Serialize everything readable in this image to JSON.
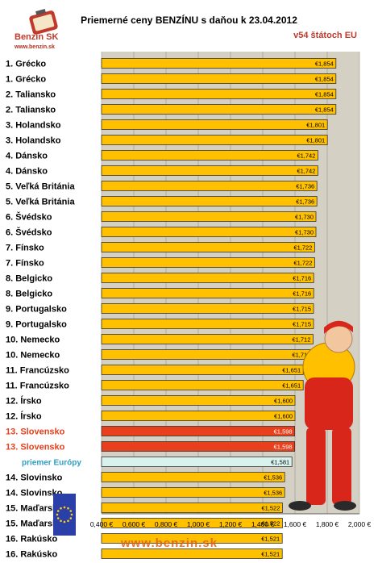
{
  "header": {
    "title": "Priemerné ceny BENZÍNU s daňou k 23.04.2012",
    "subtitle": "v54 štátoch EU",
    "logo_text": "Benzin SK",
    "logo_url": "www.benzin.sk",
    "watermark": "www.benzin.sk"
  },
  "colors": {
    "bar_default": "#ffc000",
    "bar_highlight": "#e8401c",
    "bar_average": "#d8f3ee",
    "label_highlight": "#e8401c",
    "label_average": "#2e9ec4",
    "plot_background": "#d4d0c4"
  },
  "chart_data": {
    "type": "bar",
    "orientation": "horizontal",
    "title": "Priemerné ceny BENZÍNU s daňou k 23.04.2012",
    "subtitle": "v54 štátoch EU",
    "xlim": [
      0.4,
      2.0
    ],
    "x_ticks": [
      "0,400 €",
      "0,600 €",
      "0,800 €",
      "1,000 €",
      "1,200 €",
      "1,400 €",
      "1,600 €",
      "1,800 €",
      "2,000 €"
    ],
    "x_tick_values": [
      0.4,
      0.6,
      0.8,
      1.0,
      1.2,
      1.4,
      1.6,
      1.8,
      2.0
    ],
    "grid": true,
    "categories": [
      "1. Grécko",
      "1. Grécko",
      "2. Taliansko",
      "2. Taliansko",
      "3. Holandsko",
      "3. Holandsko",
      "4. Dánsko",
      "4. Dánsko",
      "5. Veľká Británia",
      "5. Veľká Británia",
      "6. Švédsko",
      "6. Švédsko",
      "7. Fínsko",
      "7. Fínsko",
      "8. Belgicko",
      "8. Belgicko",
      "9. Portugalsko",
      "9. Portugalsko",
      "10. Nemecko",
      "10. Nemecko",
      "11. Francúzsko",
      "11. Francúzsko",
      "12. Írsko",
      "12. Írsko",
      "13. Slovensko",
      "13. Slovensko",
      "priemer Európy",
      "14. Slovinsko",
      "14. Slovinsko",
      "15. Maďarsko",
      "15. Maďarsko",
      "16. Rakúsko",
      "16. Rakúsko"
    ],
    "values": [
      1.854,
      1.854,
      1.854,
      1.854,
      1.801,
      1.801,
      1.742,
      1.742,
      1.736,
      1.736,
      1.73,
      1.73,
      1.722,
      1.722,
      1.716,
      1.716,
      1.715,
      1.715,
      1.712,
      1.712,
      1.651,
      1.651,
      1.6,
      1.6,
      1.598,
      1.598,
      1.581,
      1.536,
      1.536,
      1.522,
      1.522,
      1.521,
      1.521
    ],
    "value_labels": [
      "€1,854",
      "€1,854",
      "€1,854",
      "€1,854",
      "€1,801",
      "€1,801",
      "€1,742",
      "€1,742",
      "€1,736",
      "€1,736",
      "€1,730",
      "€1,730",
      "€1,722",
      "€1,722",
      "€1,716",
      "€1,716",
      "€1,715",
      "€1,715",
      "€1,712",
      "€1,712",
      "€1,651",
      "€1,651",
      "€1,600",
      "€1,600",
      "€1,598",
      "€1,598",
      "€1,581",
      "€1,536",
      "€1,536",
      "€1,522",
      "€1,522",
      "€1,521",
      "€1,521"
    ],
    "highlight": [
      "13. Slovensko"
    ],
    "average_label": "priemer Európy"
  }
}
